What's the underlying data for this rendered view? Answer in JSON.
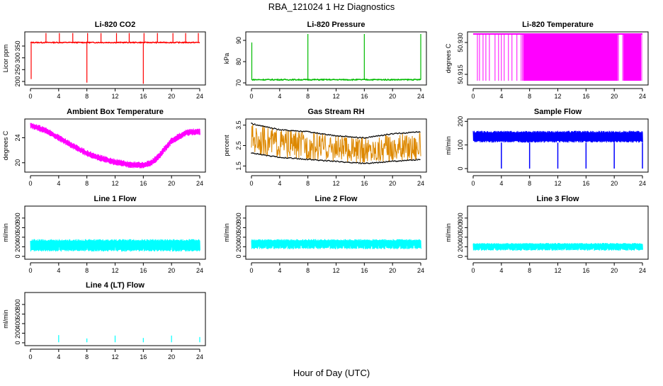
{
  "page": {
    "title": "RBA_121024  1 Hz Diagnostics",
    "xlabel": "Hour of Day (UTC)"
  },
  "chart_data": [
    {
      "type": "line",
      "title": "Li-820 CO2",
      "ylabel": "Licor ppm",
      "color": "#ff0000",
      "xlim": [
        0,
        24
      ],
      "ylim": [
        185,
        410
      ],
      "yticks": [
        "200",
        "250",
        "300",
        "350"
      ],
      "ytick_values": [
        200,
        250,
        300,
        350
      ],
      "xticks": [
        "0",
        "4",
        "8",
        "12",
        "16",
        "20",
        "24"
      ],
      "baseline": 365,
      "noise": 4,
      "spikes": [
        {
          "x": 0.1,
          "y": 210
        },
        {
          "x": 8,
          "y": 195
        },
        {
          "x": 16,
          "y": 190
        },
        {
          "x": 2.2,
          "y": 405
        },
        {
          "x": 4.1,
          "y": 405
        },
        {
          "x": 6,
          "y": 405
        },
        {
          "x": 8.1,
          "y": 405
        },
        {
          "x": 10,
          "y": 405
        },
        {
          "x": 12.2,
          "y": 405
        },
        {
          "x": 14,
          "y": 405
        },
        {
          "x": 16.1,
          "y": 405
        },
        {
          "x": 18,
          "y": 405
        },
        {
          "x": 20.2,
          "y": 405
        },
        {
          "x": 22,
          "y": 405
        },
        {
          "x": 23.8,
          "y": 405
        }
      ],
      "show_bottom_axis": true
    },
    {
      "type": "line",
      "title": "Li-820 Pressure",
      "ylabel": "kPa",
      "color": "#00bb00",
      "xlim": [
        0,
        24
      ],
      "ylim": [
        69,
        94
      ],
      "yticks": [
        "70",
        "80",
        "90"
      ],
      "ytick_values": [
        70,
        80,
        90
      ],
      "xticks": [
        "0",
        "4",
        "8",
        "12",
        "16",
        "20",
        "24"
      ],
      "baseline": 71.5,
      "noise": 0.5,
      "spikes": [
        {
          "x": 0.05,
          "y": 89
        },
        {
          "x": 8,
          "y": 93
        },
        {
          "x": 16,
          "y": 93
        },
        {
          "x": 24,
          "y": 93
        }
      ],
      "show_bottom_axis": true
    },
    {
      "type": "line",
      "title": "Li-820 Temperature",
      "ylabel": "degrees C",
      "color": "#ff00ff",
      "xlim": [
        0,
        24
      ],
      "ylim": [
        50.91,
        50.935
      ],
      "yticks": [
        "50.915",
        "50.930"
      ],
      "ytick_values": [
        50.915,
        50.93
      ],
      "xticks": [
        "0",
        "4",
        "8",
        "12",
        "16",
        "20",
        "24"
      ],
      "show_bottom_axis": true
    },
    {
      "type": "line",
      "title": "Ambient Box Temperature",
      "ylabel": "degrees C",
      "color": "#ff00ff",
      "xlim": [
        0,
        24
      ],
      "ylim": [
        18.5,
        27
      ],
      "yticks": [
        "20",
        "24"
      ],
      "ytick_values": [
        20,
        24
      ],
      "xticks": [
        "0",
        "4",
        "8",
        "12",
        "16",
        "20",
        "24"
      ],
      "curve_x": [
        0,
        2,
        4,
        6,
        8,
        10,
        12,
        14,
        16,
        17,
        18,
        19,
        20,
        22,
        24
      ],
      "curve_y": [
        26.0,
        25.2,
        24.0,
        22.7,
        21.5,
        20.7,
        20.1,
        19.7,
        19.6,
        19.9,
        20.8,
        22.2,
        23.5,
        24.8,
        25.0
      ],
      "band_width": 1.1,
      "show_bottom_axis": true
    },
    {
      "type": "scatter",
      "title": "Gas Stream RH",
      "ylabel": "percent",
      "color": "#dd8800",
      "xlim": [
        0,
        24
      ],
      "ylim": [
        1.2,
        3.8
      ],
      "yticks": [
        "1.5",
        "2.5",
        "3.5"
      ],
      "ytick_values": [
        1.5,
        2.5,
        3.5
      ],
      "xticks": [
        "0",
        "4",
        "8",
        "12",
        "16",
        "20",
        "24"
      ],
      "upper_x": [
        0,
        4,
        8,
        12,
        16,
        20,
        24
      ],
      "upper_y": [
        3.6,
        3.3,
        3.2,
        3.0,
        2.9,
        3.1,
        3.2
      ],
      "lower_x": [
        0,
        4,
        8,
        12,
        16,
        20,
        24
      ],
      "lower_y": [
        2.1,
        1.9,
        1.8,
        1.7,
        1.6,
        1.7,
        1.8
      ],
      "show_bottom_axis": true
    },
    {
      "type": "line",
      "title": "Sample Flow",
      "ylabel": "ml/min",
      "color": "#0000ff",
      "xlim": [
        0,
        24
      ],
      "ylim": [
        -15,
        210
      ],
      "yticks": [
        "0",
        "100",
        "200"
      ],
      "ytick_values": [
        0,
        100,
        200
      ],
      "xticks": [
        "0",
        "4",
        "8",
        "12",
        "16",
        "20",
        "24"
      ],
      "band": [
        110,
        160
      ],
      "spikes_down": [
        4,
        8,
        12,
        16,
        20,
        24
      ],
      "spike_down_y": 0,
      "show_bottom_axis": true
    },
    {
      "type": "line",
      "title": "Line 1 Flow",
      "ylabel": "ml/min",
      "color": "#00ffff",
      "xlim": [
        0,
        24
      ],
      "ylim": [
        -60,
        1050
      ],
      "yticks": [
        "0",
        "200",
        "400",
        "600",
        "800"
      ],
      "ytick_values": [
        0,
        200,
        400,
        600,
        800
      ],
      "xticks": [
        "0",
        "4",
        "8",
        "12",
        "16",
        "20",
        "24"
      ],
      "band": [
        100,
        360
      ],
      "gaps": [
        4,
        8,
        12,
        16,
        20
      ],
      "show_bottom_axis": true
    },
    {
      "type": "line",
      "title": "Line 2 Flow",
      "ylabel": "ml/min",
      "color": "#00ffff",
      "xlim": [
        0,
        24
      ],
      "ylim": [
        -60,
        1050
      ],
      "yticks": [
        "0",
        "200",
        "400",
        "600",
        "800"
      ],
      "ytick_values": [
        0,
        200,
        400,
        600,
        800
      ],
      "xticks": [
        "0",
        "4",
        "8",
        "12",
        "16",
        "20",
        "24"
      ],
      "band": [
        150,
        360
      ],
      "gaps": [
        1,
        2,
        3,
        4,
        5,
        6,
        7,
        8,
        9,
        10,
        11,
        12,
        13,
        14,
        15,
        16,
        17,
        18,
        19,
        20,
        21,
        22,
        23
      ],
      "show_bottom_axis": true
    },
    {
      "type": "line",
      "title": "Line 3 Flow",
      "ylabel": "ml/min",
      "color": "#00ffff",
      "xlim": [
        0,
        24
      ],
      "ylim": [
        -60,
        1050
      ],
      "yticks": [
        "0",
        "200",
        "400",
        "600",
        "800"
      ],
      "ytick_values": [
        0,
        200,
        400,
        600,
        800
      ],
      "xticks": [
        "0",
        "4",
        "8",
        "12",
        "16",
        "20",
        "24"
      ],
      "band": [
        120,
        280
      ],
      "gaps": [
        1,
        2,
        3,
        4,
        5,
        6,
        7,
        8,
        9,
        10,
        11,
        12,
        13,
        14,
        15,
        16,
        17,
        18,
        19,
        20,
        21,
        22,
        23
      ],
      "show_bottom_axis": true
    },
    {
      "type": "line",
      "title": "Line 4 (LT) Flow",
      "ylabel": "ml/min",
      "color": "#00ffff",
      "xlim": [
        0,
        24
      ],
      "ylim": [
        -60,
        1050
      ],
      "yticks": [
        "0",
        "200",
        "400",
        "600",
        "800"
      ],
      "ytick_values": [
        0,
        200,
        400,
        600,
        800
      ],
      "xticks": [
        "0",
        "4",
        "8",
        "12",
        "16",
        "20",
        "24"
      ],
      "baseline": 10,
      "spikes": [
        {
          "x": 4,
          "y": 160
        },
        {
          "x": 8,
          "y": 90
        },
        {
          "x": 12,
          "y": 150
        },
        {
          "x": 16,
          "y": 100
        },
        {
          "x": 20,
          "y": 150
        },
        {
          "x": 24,
          "y": 120
        }
      ],
      "show_bottom_axis": true
    }
  ]
}
